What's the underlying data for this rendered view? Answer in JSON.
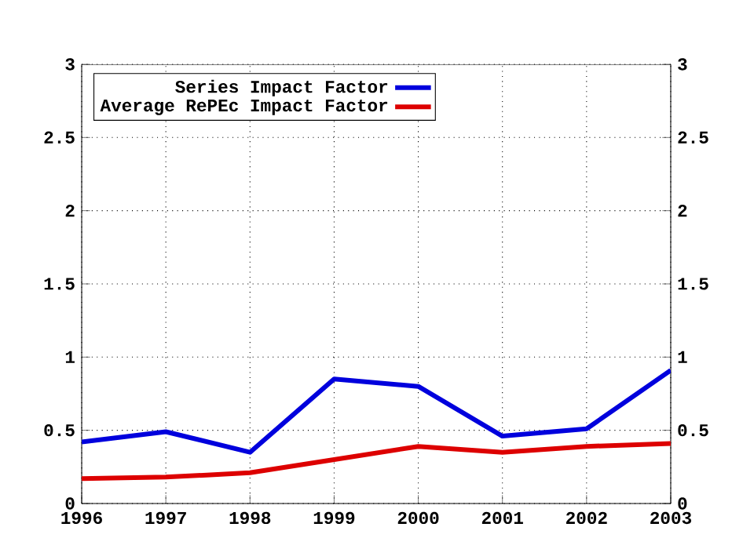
{
  "chart_data": {
    "type": "line",
    "x": [
      1996,
      1997,
      1998,
      1999,
      2000,
      2001,
      2002,
      2003
    ],
    "xlim": [
      1996,
      2003
    ],
    "xticks": [
      1996,
      1997,
      1998,
      1999,
      2000,
      2001,
      2002,
      2003
    ],
    "ylim": [
      0,
      3
    ],
    "yticks": [
      0,
      0.5,
      1,
      1.5,
      2,
      2.5,
      3
    ],
    "y2lim": [
      0,
      3
    ],
    "y2ticks": [
      0,
      0.5,
      1,
      1.5,
      2,
      2.5,
      3
    ],
    "series": [
      {
        "name": "Series Impact Factor",
        "color": "#0000dd",
        "values": [
          0.42,
          0.49,
          0.35,
          0.85,
          0.8,
          0.46,
          0.51,
          0.91
        ]
      },
      {
        "name": "Average RePEc Impact Factor",
        "color": "#dd0000",
        "values": [
          0.17,
          0.18,
          0.21,
          0.3,
          0.39,
          0.35,
          0.39,
          0.41
        ]
      }
    ],
    "grid": true,
    "legend": "top left",
    "marker": "none",
    "line_style": "solid"
  }
}
